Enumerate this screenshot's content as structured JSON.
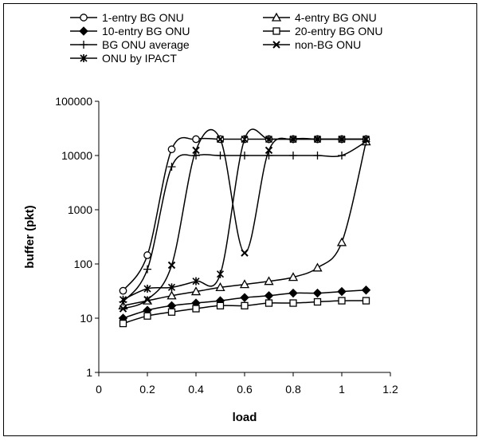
{
  "chart_data": {
    "type": "line",
    "title": "",
    "xlabel": "load",
    "ylabel": "buffer (pkt)",
    "xlim": [
      0,
      1.2
    ],
    "ylim": [
      1,
      100000
    ],
    "yscale": "log",
    "xticks": [
      "0",
      "0.2",
      "0.4",
      "0.6",
      "0.8",
      "1",
      "1.2"
    ],
    "yticks": [
      "1",
      "10",
      "100",
      "1000",
      "10000",
      "100000"
    ],
    "grid": false,
    "legend_position": "top",
    "series": [
      {
        "name": "1-entry BG ONU",
        "marker": "circle",
        "x": [
          0.1,
          0.2,
          0.3,
          0.4,
          0.5,
          0.6,
          0.7,
          0.8,
          0.9,
          1.0,
          1.1
        ],
        "y": [
          32,
          145,
          13000,
          20000,
          20000,
          20000,
          20000,
          20000,
          20000,
          20000,
          20000
        ]
      },
      {
        "name": "4-entry BG ONU",
        "marker": "triangle",
        "x": [
          0.1,
          0.2,
          0.3,
          0.4,
          0.5,
          0.6,
          0.7,
          0.8,
          0.9,
          1.0,
          1.1
        ],
        "y": [
          17,
          21,
          26,
          31,
          37,
          42,
          48,
          57,
          85,
          250,
          18000
        ]
      },
      {
        "name": "10-entry BG ONU",
        "marker": "diamond",
        "x": [
          0.1,
          0.2,
          0.3,
          0.4,
          0.5,
          0.6,
          0.7,
          0.8,
          0.9,
          1.0,
          1.1
        ],
        "y": [
          10,
          14,
          17,
          19,
          21,
          24,
          26,
          29,
          29,
          31,
          33
        ]
      },
      {
        "name": "20-entry BG ONU",
        "marker": "square",
        "x": [
          0.1,
          0.2,
          0.3,
          0.4,
          0.5,
          0.6,
          0.7,
          0.8,
          0.9,
          1.0,
          1.1
        ],
        "y": [
          8,
          11,
          13,
          15,
          17,
          17,
          19,
          19,
          20,
          21,
          21
        ]
      },
      {
        "name": "BG ONU average",
        "marker": "plus",
        "x": [
          0.1,
          0.2,
          0.3,
          0.4,
          0.5,
          0.6,
          0.7,
          0.8,
          0.9,
          1.0,
          1.1
        ],
        "y": [
          20,
          80,
          6200,
          10000,
          10000,
          10000,
          10000,
          10000,
          10000,
          10000,
          18000
        ]
      },
      {
        "name": "non-BG ONU",
        "marker": "x",
        "x": [
          0.1,
          0.2,
          0.3,
          0.4,
          0.5,
          0.6,
          0.7,
          0.8,
          0.9,
          1.0,
          1.1
        ],
        "y": [
          15,
          22,
          95,
          12500,
          20000,
          160,
          12500,
          20000,
          20000,
          20000,
          20000
        ]
      },
      {
        "name": "ONU by IPACT",
        "marker": "asterisk",
        "x": [
          0.1,
          0.2,
          0.3,
          0.4,
          0.5,
          0.6,
          0.7,
          0.8,
          0.9,
          1.0,
          1.1
        ],
        "y": [
          22,
          35,
          37,
          48,
          65,
          20000,
          20000,
          20000,
          20000,
          20000,
          20000
        ]
      }
    ]
  }
}
